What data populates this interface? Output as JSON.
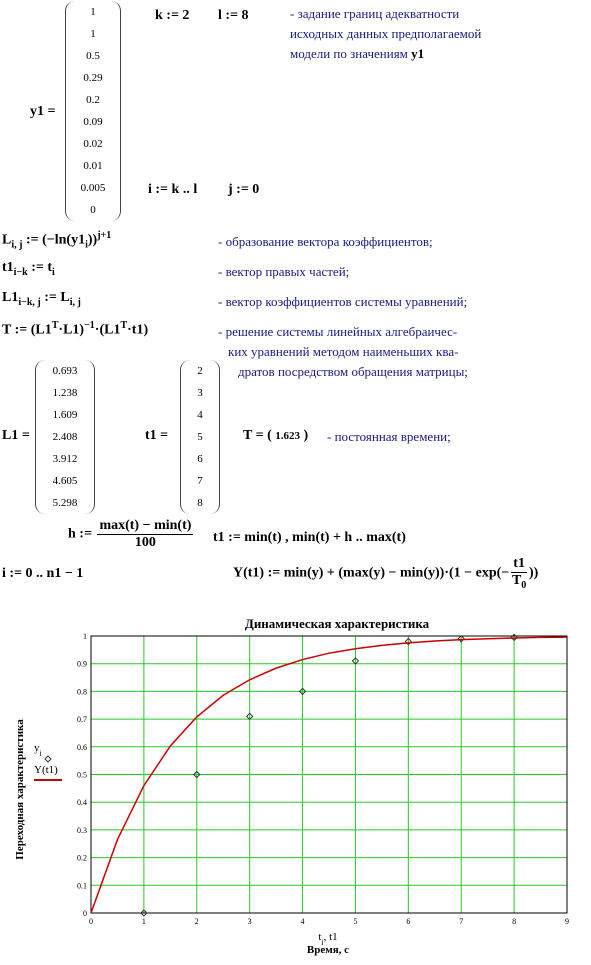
{
  "y1_matrix": {
    "label": "y1 =",
    "values": [
      1,
      1,
      0.5,
      0.29,
      0.2,
      0.09,
      0.02,
      0.01,
      0.005,
      0
    ]
  },
  "defs": {
    "k": "k := 2",
    "l": "l := 8",
    "i": "i := k .. l",
    "j": "j := 0"
  },
  "note1": {
    "lines": [
      "- задание границ  адекватности",
      "исходных данных  предполагаемой"
    ],
    "last": "модели  по  значениям",
    "var": "y1"
  },
  "formulas": [
    {
      "parts": [
        {
          "text": "L"
        },
        {
          "text": "i, j",
          "pos": "sub"
        },
        {
          "text": " := (−ln(y1"
        },
        {
          "text": "i",
          "pos": "sub"
        },
        {
          "text": "))"
        },
        {
          "text": "j+1",
          "pos": "sup"
        }
      ],
      "comment": [
        "- образование  вектора  коэффициентов;"
      ]
    },
    {
      "parts": [
        {
          "text": "t1"
        },
        {
          "text": "i−k",
          "pos": "sub"
        },
        {
          "text": " := t"
        },
        {
          "text": "i",
          "pos": "sub"
        }
      ],
      "comment": [
        "- вектор  правых  частей;"
      ]
    },
    {
      "parts": [
        {
          "text": "L1"
        },
        {
          "text": "i−k, j",
          "pos": "sub"
        },
        {
          "text": " := L"
        },
        {
          "text": "i, j",
          "pos": "sub"
        }
      ],
      "comment": [
        "- вектор  коэффициентов  системы  уравнений;"
      ]
    },
    {
      "parts": [
        {
          "text": "T := (L1"
        },
        {
          "text": "T",
          "pos": "sup"
        },
        {
          "text": "·L1)"
        },
        {
          "text": "−1",
          "pos": "sup"
        },
        {
          "text": "·(L1"
        },
        {
          "text": "T",
          "pos": "sup"
        },
        {
          "text": "·t1)"
        }
      ],
      "comment": [
        "- решение  системы  линейных  алгебраичес-",
        "ких  уравнений  методом  наименьших  ква-",
        "дратов  посредством  обращения  матрицы;"
      ]
    }
  ],
  "L1_matrix": {
    "label": "L1 =",
    "values": [
      0.693,
      1.238,
      1.609,
      2.408,
      3.912,
      4.605,
      5.298
    ]
  },
  "t1_matrix": {
    "label": "t1 =",
    "values": [
      2,
      3,
      4,
      5,
      6,
      7,
      8
    ]
  },
  "T_result": {
    "lhs": "T = (",
    "value": 1.623,
    "rhs": ")",
    "comment": "- постоянная  времени;"
  },
  "h_def": [
    {
      "text": "h := "
    },
    {
      "num": "max(t) − min(t)",
      "den": "100"
    }
  ],
  "t1_range": "t1 := min(t) , min(t) + h .. max(t)",
  "i_range": "i := 0 .. n1 − 1",
  "Y_def": [
    {
      "text": "Y(t1) := min(y) + (max(y) − min(y))·(1 − exp(−"
    },
    {
      "num": "t1",
      "den": "T",
      "den_sub": "0"
    },
    {
      "text": "))"
    }
  ],
  "chart_data": {
    "type": "line",
    "title": "Динамическая  характеристика",
    "y_label": "Переходная  характеристика",
    "x_label": "Время, с",
    "x_var": [
      {
        "text": "t"
      },
      {
        "text": "i",
        "pos": "sub"
      },
      {
        "text": ", t1"
      }
    ],
    "xlim": [
      0,
      9
    ],
    "xticks": [
      0,
      1,
      2,
      3,
      4,
      5,
      6,
      7,
      8,
      9
    ],
    "ylim": [
      0,
      1
    ],
    "yticks": [
      0,
      0.1,
      0.2,
      0.3,
      0.4,
      0.5,
      0.6,
      0.7,
      0.8,
      0.9,
      1
    ],
    "grid": true,
    "grid_color": "#22cc22",
    "series": [
      {
        "name": "y",
        "name_sub": "i",
        "marker": "diamond",
        "color": "#333333",
        "x": [
          1,
          2,
          3,
          4,
          5,
          6,
          7,
          8
        ],
        "values": [
          0,
          0.5,
          0.71,
          0.8,
          0.91,
          0.98,
          0.99,
          0.995
        ]
      },
      {
        "name": "Y(t1)",
        "marker": "line",
        "color": "#cc0000",
        "x": [
          0,
          0.5,
          1,
          1.5,
          2,
          2.5,
          3,
          3.5,
          4,
          4.5,
          5,
          5.5,
          6,
          6.5,
          7,
          7.5,
          8,
          8.5,
          9
        ],
        "values": [
          0,
          0.265,
          0.46,
          0.603,
          0.708,
          0.786,
          0.842,
          0.884,
          0.915,
          0.938,
          0.954,
          0.966,
          0.975,
          0.982,
          0.987,
          0.99,
          0.993,
          0.995,
          0.996
        ]
      }
    ]
  }
}
